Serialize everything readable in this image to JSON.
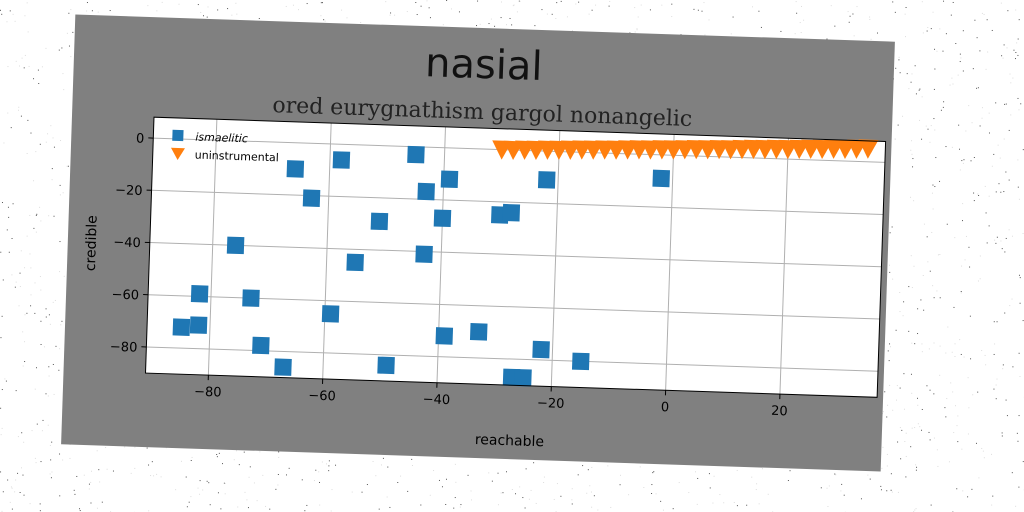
{
  "chart_data": {
    "type": "scatter",
    "title": "nasial",
    "subtitle": "ored eurygnathism gargol nonangelic",
    "xlabel": "reachable",
    "ylabel": "credible",
    "xlim": [
      -91,
      37
    ],
    "ylim": [
      -90,
      8
    ],
    "xticks": [
      -80,
      -60,
      -40,
      -20,
      0,
      20
    ],
    "yticks": [
      0,
      -20,
      -40,
      -60,
      -80
    ],
    "grid": true,
    "legend_position": "top-left",
    "series": [
      {
        "name": "ismaelitic",
        "marker": "square",
        "color": "#1f77b4",
        "points": [
          [
            -85,
            -72
          ],
          [
            -82,
            -71
          ],
          [
            -82,
            -59
          ],
          [
            -76,
            -40
          ],
          [
            -73,
            -60
          ],
          [
            -71,
            -78
          ],
          [
            -67,
            -86
          ],
          [
            -66,
            -10
          ],
          [
            -63,
            -21
          ],
          [
            -59,
            -65
          ],
          [
            -58,
            -6
          ],
          [
            -55,
            -45
          ],
          [
            -51,
            -29
          ],
          [
            -49,
            -84
          ],
          [
            -45,
            -3
          ],
          [
            -43,
            -17
          ],
          [
            -43,
            -41
          ],
          [
            -40,
            -27
          ],
          [
            -39,
            -12
          ],
          [
            -39,
            -72
          ],
          [
            -33,
            -70
          ],
          [
            -30,
            -25
          ],
          [
            -28,
            -24
          ],
          [
            -27,
            -87
          ],
          [
            -25,
            -87
          ],
          [
            -22,
            -76
          ],
          [
            -22,
            -11
          ],
          [
            -15,
            -80
          ],
          [
            -2,
            -9
          ]
        ]
      },
      {
        "name": "uninstrumental",
        "marker": "triangle-down",
        "color": "#ff7f0e",
        "points": [
          [
            -30,
            0
          ],
          [
            -28,
            0
          ],
          [
            -26,
            0.2
          ],
          [
            -24,
            0.3
          ],
          [
            -22,
            0.5
          ],
          [
            -20,
            0.6
          ],
          [
            -18,
            0.8
          ],
          [
            -16,
            1
          ],
          [
            -14,
            1.1
          ],
          [
            -12,
            1.3
          ],
          [
            -10,
            1.4
          ],
          [
            -8,
            1.6
          ],
          [
            -6,
            1.8
          ],
          [
            -4,
            1.9
          ],
          [
            -2,
            2.1
          ],
          [
            0,
            2.2
          ],
          [
            2,
            2.4
          ],
          [
            4,
            2.6
          ],
          [
            6,
            2.7
          ],
          [
            8,
            2.9
          ],
          [
            10,
            3
          ],
          [
            12,
            3.2
          ],
          [
            14,
            3.4
          ],
          [
            16,
            3.5
          ],
          [
            18,
            3.7
          ],
          [
            20,
            3.8
          ],
          [
            22,
            4
          ],
          [
            24,
            4.2
          ],
          [
            26,
            4.3
          ],
          [
            28,
            4.5
          ],
          [
            30,
            4.6
          ],
          [
            32,
            4.8
          ],
          [
            34,
            5
          ]
        ]
      }
    ]
  }
}
